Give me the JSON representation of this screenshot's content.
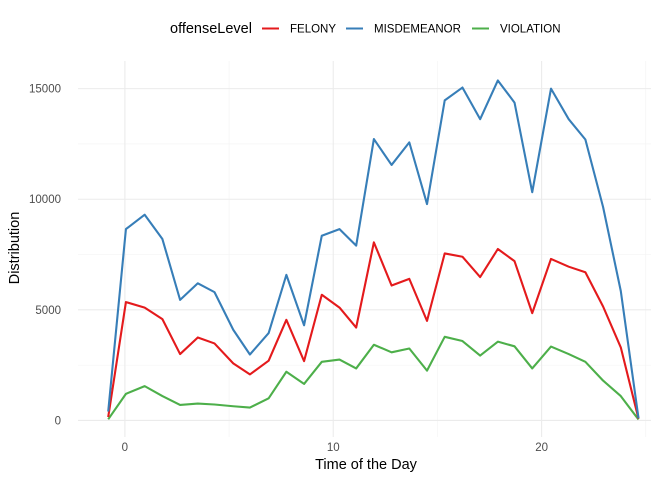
{
  "chart_data": {
    "type": "line",
    "title": "",
    "xlabel": "Time of the Day",
    "ylabel": "Distribution",
    "xlim": [
      -2.25,
      25.25
    ],
    "ylim": [
      -750,
      16250
    ],
    "x_ticks": [
      0,
      10,
      20
    ],
    "y_ticks": [
      0,
      5000,
      10000,
      15000
    ],
    "y_tick_labels": [
      "0",
      "5000",
      "10000",
      "15000"
    ],
    "grid": true,
    "legend": {
      "title": "offenseLevel",
      "position": "top"
    },
    "x": [
      -0.8,
      0.05,
      0.95,
      1.8,
      2.65,
      3.5,
      4.3,
      5.2,
      6.0,
      6.9,
      7.75,
      8.6,
      9.45,
      10.3,
      11.1,
      11.95,
      12.8,
      13.65,
      14.5,
      15.35,
      16.2,
      17.05,
      17.9,
      18.7,
      19.55,
      20.45,
      21.3,
      22.1,
      22.95,
      23.8,
      24.65
    ],
    "series": [
      {
        "name": "FELONY",
        "color": "#E41A1C",
        "values": [
          150,
          5350,
          5100,
          4580,
          3000,
          3750,
          3480,
          2580,
          2080,
          2700,
          4550,
          2680,
          5680,
          5100,
          4200,
          8050,
          6100,
          6400,
          4500,
          7550,
          7400,
          6480,
          7750,
          7200,
          4850,
          7300,
          6950,
          6700,
          5150,
          3300,
          80
        ]
      },
      {
        "name": "MISDEMEANOR",
        "color": "#377EB8",
        "values": [
          400,
          8650,
          9300,
          8200,
          5450,
          6200,
          5800,
          4100,
          2980,
          3950,
          6580,
          4300,
          8350,
          8650,
          7900,
          12720,
          11550,
          12570,
          9780,
          14470,
          15050,
          13620,
          15370,
          14370,
          10320,
          15000,
          13620,
          12700,
          9650,
          5850,
          100
        ]
      },
      {
        "name": "VIOLATION",
        "color": "#4DAF4A",
        "values": [
          50,
          1200,
          1550,
          1100,
          700,
          760,
          720,
          640,
          580,
          1000,
          2200,
          1650,
          2650,
          2750,
          2350,
          3420,
          3080,
          3250,
          2250,
          3780,
          3590,
          2930,
          3560,
          3350,
          2350,
          3340,
          3000,
          2650,
          1800,
          1100,
          40
        ]
      }
    ]
  }
}
